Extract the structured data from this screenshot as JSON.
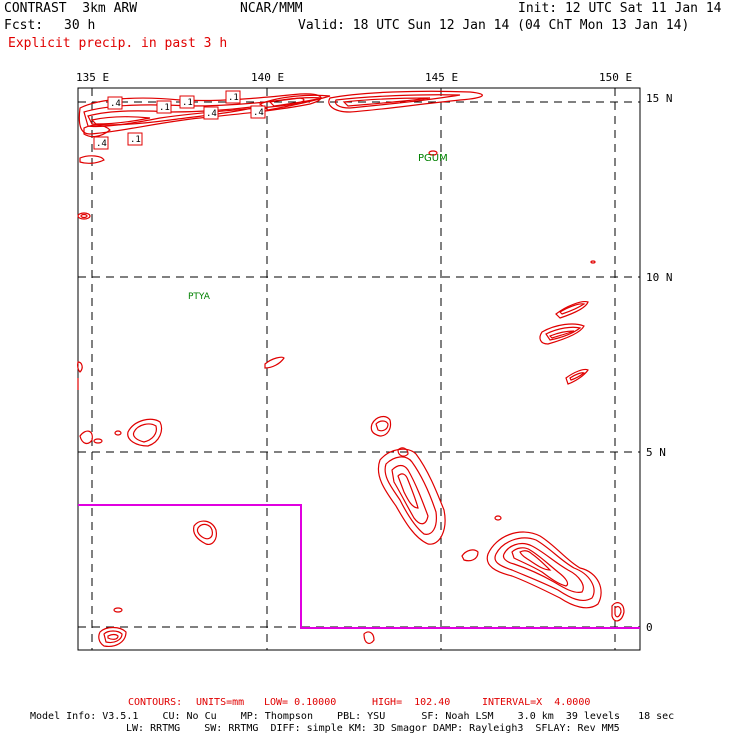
{
  "header": {
    "title": "CONTRAST  3km ARW",
    "center": "NCAR/MMM",
    "init": "Init: 12 UTC Sat 11 Jan 14",
    "fcst_label": "Fcst:",
    "fcst_value": "30 h",
    "valid": "Valid: 18 UTC Sun 12 Jan 14 (04 ChT Mon 13 Jan 14)",
    "field": "Explicit precip. in past 3 h"
  },
  "map": {
    "lon_labels": [
      "135 E",
      "140 E",
      "145 E",
      "150 E"
    ],
    "lat_labels": [
      "15 N",
      "10 N",
      "5 N",
      "0"
    ],
    "stations": [
      "PGUM",
      "PTYA"
    ],
    "contour_labels": [
      ".4",
      ".1",
      ".1",
      ".4",
      ".1",
      ".4",
      ".4",
      ".1",
      ".4"
    ],
    "colors": {
      "contour": "#e00000",
      "frame": "#000000",
      "station": "#008000",
      "boundary": "#e000e0"
    }
  },
  "footer": {
    "contours": {
      "label": "CONTOURS:",
      "units": "UNITS=mm",
      "low": "LOW= 0.10000",
      "high": "HIGH=  102.40",
      "interval": "INTERVAL=X  4.0000"
    },
    "model_line1": "Model Info: V3.5.1    CU: No Cu    MP: Thompson    PBL: YSU      SF: Noah LSM    3.0 km  39 levels   18 sec",
    "model_line2": "LW: RRTMG    SW: RRTMG  DIFF: simple KM: 3D Smagor DAMP: Rayleigh3  SFLAY: Rev MM5"
  }
}
